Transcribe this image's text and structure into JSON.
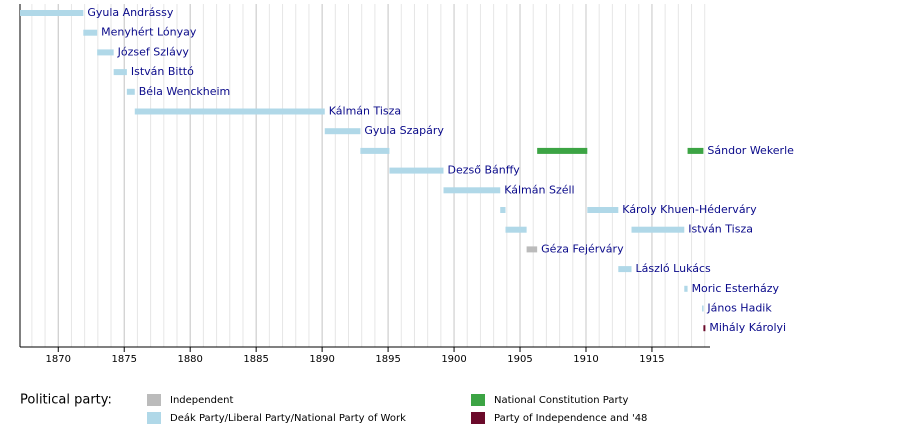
{
  "chart_data": {
    "type": "timeline",
    "xlim": [
      1867.1,
      1919.4
    ],
    "xticks": [
      1870,
      1875,
      1880,
      1885,
      1890,
      1895,
      1900,
      1905,
      1910,
      1915
    ],
    "minor_grid_step": 1,
    "legend_title": "Political party:",
    "parties": [
      {
        "name": "Independent",
        "color": "#bbbbbb"
      },
      {
        "name": "Deák Party/Liberal Party/National Party of Work",
        "color": "#b0d8e8"
      },
      {
        "name": "National Constitution Party",
        "color": "#3ca444"
      },
      {
        "name": "Party of Independence and '48",
        "color": "#6b0a2a"
      }
    ],
    "rows": [
      {
        "name": "Gyula Andrássy",
        "segments": [
          {
            "start": 1867.1,
            "end": 1871.9,
            "party": 1
          }
        ]
      },
      {
        "name": "Menyhért Lónyay",
        "segments": [
          {
            "start": 1871.9,
            "end": 1872.95,
            "party": 1
          }
        ]
      },
      {
        "name": "József Szlávy",
        "segments": [
          {
            "start": 1872.95,
            "end": 1874.2,
            "party": 1
          }
        ]
      },
      {
        "name": "István Bittó",
        "segments": [
          {
            "start": 1874.2,
            "end": 1875.2,
            "party": 1
          }
        ]
      },
      {
        "name": "Béla Wenckheim",
        "segments": [
          {
            "start": 1875.2,
            "end": 1875.8,
            "party": 1
          }
        ]
      },
      {
        "name": "Kálmán Tisza",
        "segments": [
          {
            "start": 1875.8,
            "end": 1890.2,
            "party": 1
          }
        ]
      },
      {
        "name": "Gyula Szapáry",
        "segments": [
          {
            "start": 1890.2,
            "end": 1892.9,
            "party": 1
          }
        ]
      },
      {
        "name": "Sándor Wekerle",
        "segments": [
          {
            "start": 1892.9,
            "end": 1895.1,
            "party": 1
          },
          {
            "start": 1906.3,
            "end": 1910.1,
            "party": 2
          },
          {
            "start": 1917.7,
            "end": 1918.9,
            "party": 2
          }
        ]
      },
      {
        "name": "Dezső Bánffy",
        "segments": [
          {
            "start": 1895.1,
            "end": 1899.2,
            "party": 1
          }
        ]
      },
      {
        "name": "Kálmán Széll",
        "segments": [
          {
            "start": 1899.2,
            "end": 1903.5,
            "party": 1
          }
        ]
      },
      {
        "name": "Károly Khuen-Héderváry",
        "segments": [
          {
            "start": 1903.5,
            "end": 1903.9,
            "party": 1
          },
          {
            "start": 1910.1,
            "end": 1912.45,
            "party": 1
          }
        ]
      },
      {
        "name": "István Tisza",
        "segments": [
          {
            "start": 1903.9,
            "end": 1905.5,
            "party": 1
          },
          {
            "start": 1913.45,
            "end": 1917.45,
            "party": 1
          }
        ]
      },
      {
        "name": "Géza Fejérváry",
        "segments": [
          {
            "start": 1905.5,
            "end": 1906.3,
            "party": 0
          }
        ]
      },
      {
        "name": "László Lukács",
        "segments": [
          {
            "start": 1912.45,
            "end": 1913.45,
            "party": 1
          }
        ]
      },
      {
        "name": "Moric Esterházy",
        "segments": [
          {
            "start": 1917.45,
            "end": 1917.7,
            "party": 1
          }
        ]
      },
      {
        "name": "János Hadik",
        "segments": [
          {
            "start": 1918.8,
            "end": 1918.9,
            "party": 1
          }
        ]
      },
      {
        "name": "Mihály Károlyi",
        "segments": [
          {
            "start": 1918.9,
            "end": 1919.05,
            "party": 3
          }
        ]
      }
    ]
  }
}
